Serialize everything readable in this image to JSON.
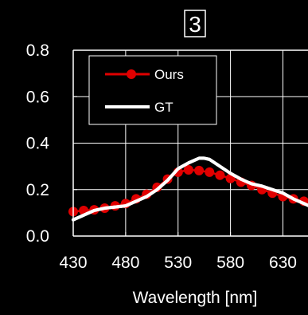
{
  "chart_data": {
    "type": "line",
    "title": "3",
    "xlabel": "Wavelength [nm]",
    "ylabel": "",
    "xlim": [
      430,
      660
    ],
    "ylim": [
      0.0,
      0.8
    ],
    "x_ticks": [
      430,
      480,
      530,
      580,
      630
    ],
    "x_tick_labels": [
      "430",
      "480",
      "530",
      "580",
      "630"
    ],
    "y_ticks": [
      0.0,
      0.2,
      0.4,
      0.6,
      0.8
    ],
    "y_tick_labels": [
      "0.0",
      "0.2",
      "0.4",
      "0.6",
      "0.8"
    ],
    "grid": true,
    "legend_position": "top-left",
    "series": [
      {
        "name": "Ours",
        "color": "#e00000",
        "marker": "circle",
        "x": [
          430,
          440,
          450,
          460,
          470,
          480,
          490,
          500,
          510,
          520,
          530,
          540,
          550,
          560,
          570,
          580,
          590,
          600,
          610,
          620,
          630,
          640,
          650,
          660
        ],
        "y": [
          0.105,
          0.11,
          0.113,
          0.12,
          0.13,
          0.14,
          0.16,
          0.18,
          0.21,
          0.245,
          0.275,
          0.285,
          0.282,
          0.275,
          0.262,
          0.248,
          0.232,
          0.218,
          0.2,
          0.185,
          0.17,
          0.16,
          0.15,
          0.14
        ]
      },
      {
        "name": "GT",
        "color": "#ffffff",
        "marker": "none",
        "x": [
          430,
          440,
          450,
          460,
          470,
          480,
          490,
          500,
          510,
          520,
          530,
          540,
          550,
          555,
          560,
          570,
          580,
          590,
          600,
          610,
          620,
          630,
          640,
          650,
          660
        ],
        "y": [
          0.07,
          0.09,
          0.11,
          0.12,
          0.125,
          0.13,
          0.15,
          0.17,
          0.2,
          0.24,
          0.29,
          0.315,
          0.335,
          0.335,
          0.33,
          0.3,
          0.27,
          0.245,
          0.225,
          0.215,
          0.2,
          0.185,
          0.16,
          0.14,
          0.12
        ]
      }
    ]
  }
}
